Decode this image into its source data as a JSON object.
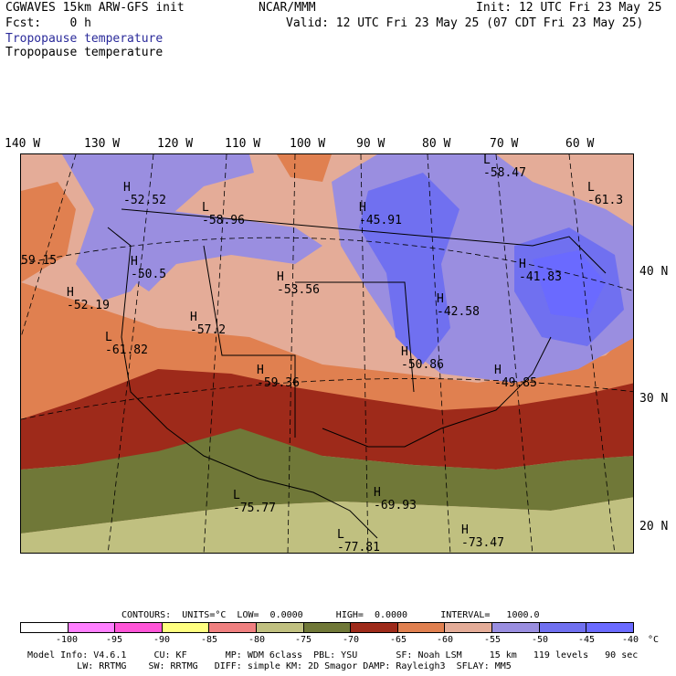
{
  "header": {
    "model_title": "CGWAVES 15km ARW-GFS init",
    "org": "NCAR/MMM",
    "init_line": "Init: 12 UTC Fri 23 May 25",
    "fcst_line": "Fcst:    0 h",
    "valid_line": "Valid: 12 UTC Fri 23 May 25 (07 CDT Fri 23 May 25)",
    "field_line_1": "Tropopause temperature",
    "field_line_2": "Tropopause temperature"
  },
  "map": {
    "longitude_labels": [
      "140 W",
      "130 W",
      "120 W",
      "110 W",
      "100 W",
      "90 W",
      "80 W",
      "70 W",
      "60 W"
    ],
    "latitude_labels": [
      "40 N",
      "30 N",
      "20 N"
    ],
    "extrema": [
      {
        "kind": "H",
        "value": "-52.52"
      },
      {
        "kind": "L",
        "value": "-58.96"
      },
      {
        "kind": "H",
        "value": "-45.91"
      },
      {
        "kind": "L",
        "value": "-58.47"
      },
      {
        "kind": "L",
        "value": "-61.3"
      },
      {
        "kind": "",
        "value": "59.15"
      },
      {
        "kind": "H",
        "value": "-50.5"
      },
      {
        "kind": "H",
        "value": "-53.56"
      },
      {
        "kind": "H",
        "value": "-41.83"
      },
      {
        "kind": "H",
        "value": "-52.19"
      },
      {
        "kind": "H",
        "value": "-42.58"
      },
      {
        "kind": "H",
        "value": "-57.2"
      },
      {
        "kind": "L",
        "value": "-61.82"
      },
      {
        "kind": "H",
        "value": "-50.86"
      },
      {
        "kind": "H",
        "value": "-59.36"
      },
      {
        "kind": "H",
        "value": "-49.85"
      },
      {
        "kind": "L",
        "value": "-75.77"
      },
      {
        "kind": "H",
        "value": "-69.93"
      },
      {
        "kind": "L",
        "value": "-77.81"
      },
      {
        "kind": "H",
        "value": "-73.47"
      }
    ]
  },
  "legend": {
    "contours_line": "CONTOURS:  UNITS=°C  LOW=  0.0000      HIGH=  0.0000      INTERVAL=   1000.0",
    "colors": [
      "#ffffff",
      "#ff80ff",
      "#ff55d8",
      "#ffff80",
      "#f08080",
      "#c0c080",
      "#707838",
      "#9e2a1a",
      "#e08050",
      "#e4ac98",
      "#9a8ee0",
      "#7070f0",
      "#6a6aff"
    ],
    "tick_labels": [
      "-100",
      "-95",
      "-90",
      "-85",
      "-80",
      "-75",
      "-70",
      "-65",
      "-60",
      "-55",
      "-50",
      "-45",
      "-40",
      "°C"
    ]
  },
  "footer": {
    "line1": "Model Info: V4.6.1     CU: KF       MP: WDM 6class  PBL: YSU       SF: Noah LSM     15 km   119 levels   90 sec",
    "line2": "         LW: RRTMG    SW: RRTMG   DIFF: simple KM: 2D Smagor DAMP: Rayleigh3  SFLAY: MM5"
  }
}
